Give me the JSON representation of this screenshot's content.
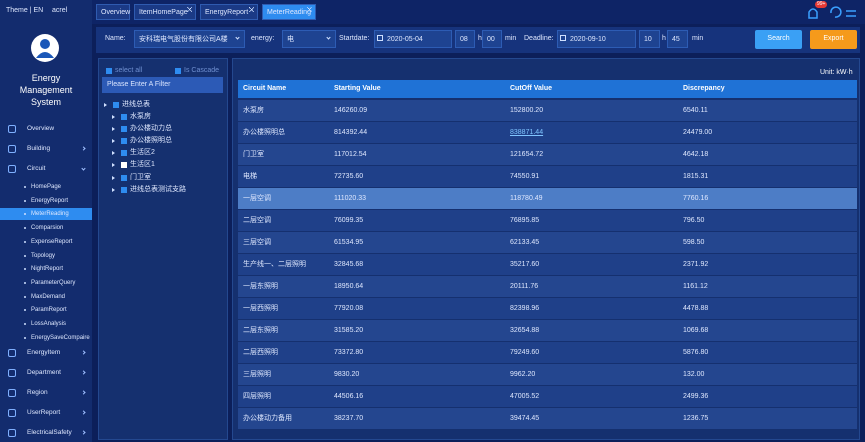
{
  "header": {
    "theme": "Theme | EN",
    "user": "acrel",
    "badge": "99+"
  },
  "tabs": [
    "Overview",
    "ItemHomePage",
    "EnergyReport",
    "MeterReading"
  ],
  "sidebar": {
    "title": [
      "Energy",
      "Management",
      "System"
    ],
    "menu": [
      "Overview",
      "Building",
      "Circuit",
      "EnergyItem",
      "Department",
      "Region",
      "UserReport",
      "ElectricalSafety"
    ],
    "submenu": [
      "HomePage",
      "EnergyReport",
      "MeterReading",
      "Comparsion",
      "ExpenseReport",
      "Topology",
      "NightReport",
      "ParameterQuery",
      "MaxDemand",
      "ParamReport",
      "LossAnalysis",
      "EnergySaveCompaire"
    ]
  },
  "filters": {
    "name_label": "Name:",
    "name_value": "安科瑞电气股份有限公司A楼",
    "energy_label": "energy:",
    "energy_value": "电",
    "start_label": "Startdate:",
    "start_date": "2020-05-04",
    "start_hour": "08",
    "start_hour_unit": "h",
    "start_min": "00",
    "start_min_unit": "min",
    "end_label": "Deadline:",
    "end_date": "2020-09-10",
    "end_hour": "10",
    "end_hour_unit": "h",
    "end_min": "45",
    "end_min_unit": "min",
    "search": "Search",
    "export": "Export"
  },
  "tree": {
    "select_all": "select all",
    "cascade": "Is Cascade",
    "filter_placeholder": "Please Enter A Filter",
    "root": "进线总表",
    "children": [
      "水泵房",
      "办公楼动力总",
      "办公楼照明总",
      "生活区2",
      "生活区1",
      "门卫室",
      "进线总表测试支路"
    ]
  },
  "table": {
    "unit": "Unit:  kW·h",
    "columns": [
      "Circuit Name",
      "Starting Value",
      "CutOff Value",
      "Discrepancy"
    ],
    "rows": [
      [
        "水泵房",
        "146260.09",
        "152800.20",
        "6540.11"
      ],
      [
        "办公楼照明总",
        "814392.44",
        "838871.44",
        "24479.00"
      ],
      [
        "门卫室",
        "117012.54",
        "121654.72",
        "4642.18"
      ],
      [
        "电梯",
        "72735.60",
        "74550.91",
        "1815.31"
      ],
      [
        "一层空调",
        "111020.33",
        "118780.49",
        "7760.16"
      ],
      [
        "二层空调",
        "76099.35",
        "76895.85",
        "796.50"
      ],
      [
        "三层空调",
        "61534.95",
        "62133.45",
        "598.50"
      ],
      [
        "生产线一、二层照明",
        "32845.68",
        "35217.60",
        "2371.92"
      ],
      [
        "一层东照明",
        "18950.64",
        "20111.76",
        "1161.12"
      ],
      [
        "一层西照明",
        "77920.08",
        "82398.96",
        "4478.88"
      ],
      [
        "二层东照明",
        "31585.20",
        "32654.88",
        "1069.68"
      ],
      [
        "二层西照明",
        "73372.80",
        "79249.60",
        "5876.80"
      ],
      [
        "三层照明",
        "9830.20",
        "9962.20",
        "132.00"
      ],
      [
        "四层照明",
        "44506.16",
        "47005.52",
        "2499.36"
      ],
      [
        "办公楼动力备用",
        "38237.70",
        "39474.45",
        "1236.75"
      ]
    ]
  }
}
